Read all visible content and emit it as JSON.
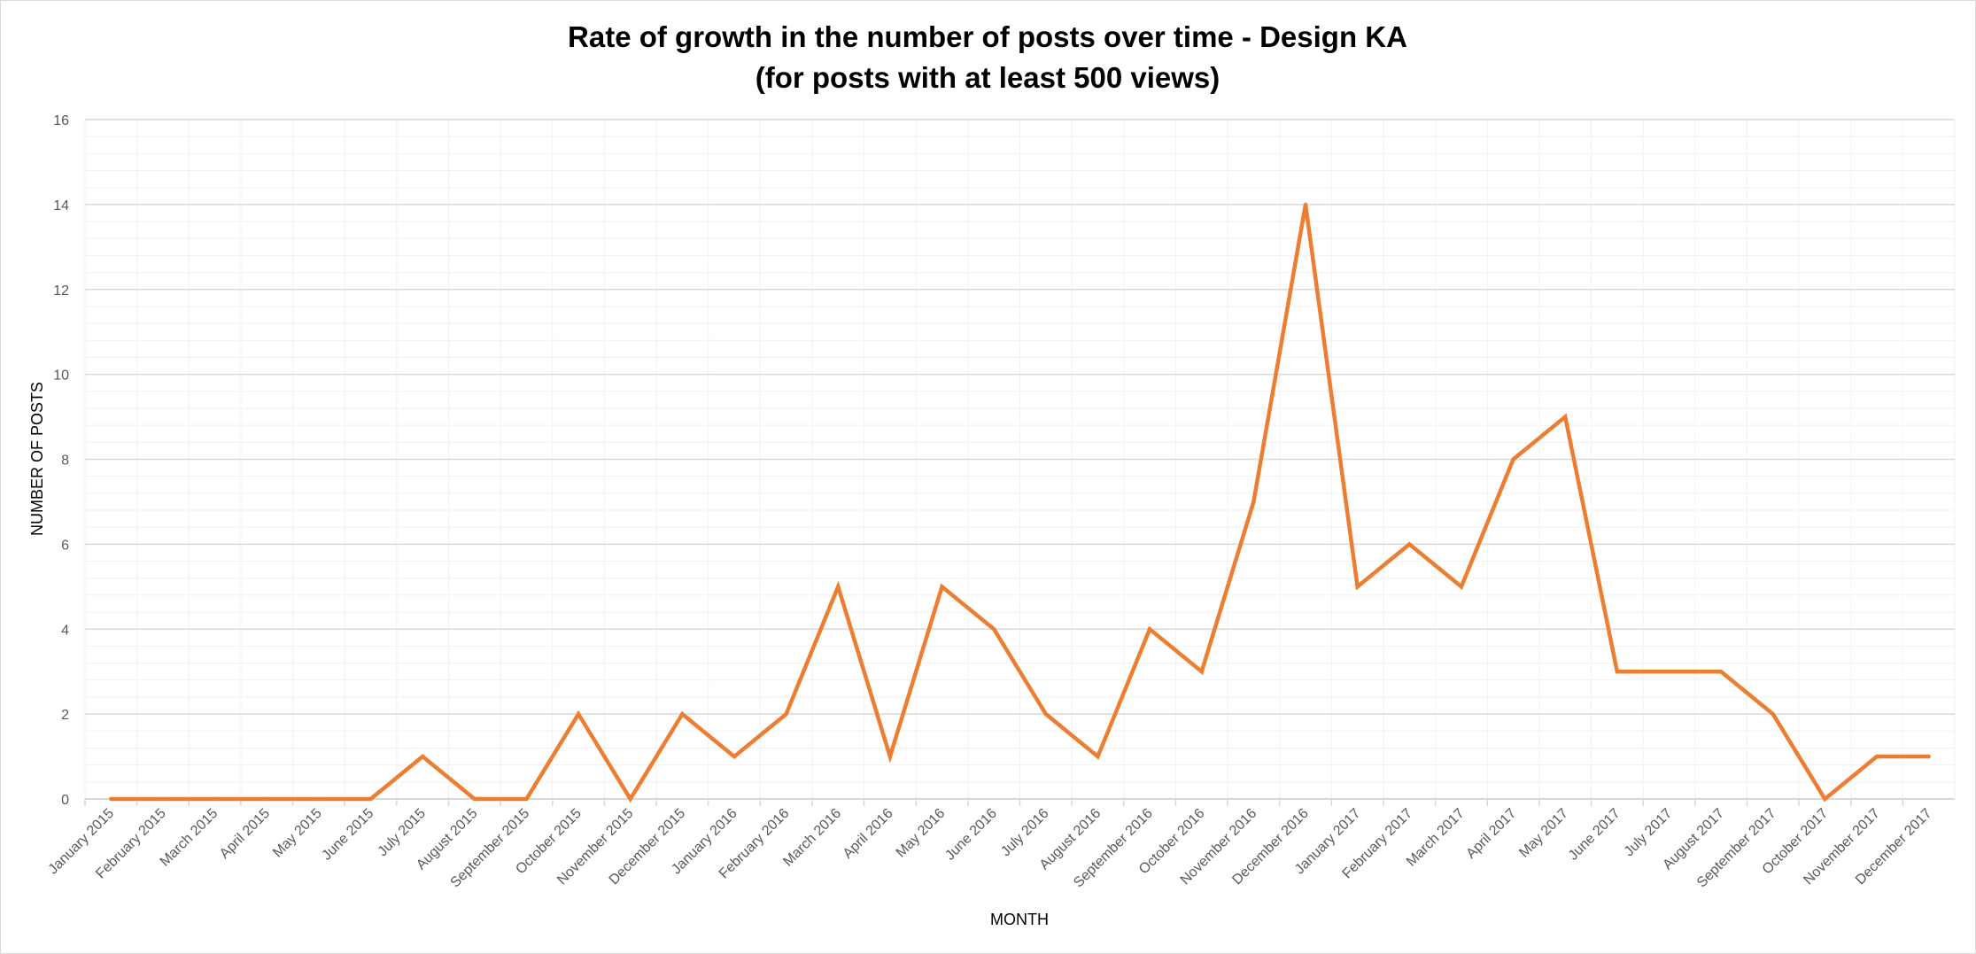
{
  "chart_data": {
    "type": "line",
    "title": "Rate of growth in the number of posts over time - Design KA",
    "subtitle": "(for posts with at least 500 views)",
    "xlabel": "MONTH",
    "ylabel": "NUMBER OF POSTS",
    "ylim": [
      0,
      16
    ],
    "y_ticks": [
      0,
      2,
      4,
      6,
      8,
      10,
      12,
      14,
      16
    ],
    "grid": true,
    "legend": "none",
    "categories": [
      "January 2015",
      "February 2015",
      "March 2015",
      "April 2015",
      "May 2015",
      "June 2015",
      "July 2015",
      "August 2015",
      "September 2015",
      "October 2015",
      "November 2015",
      "December 2015",
      "January 2016",
      "February 2016",
      "March 2016",
      "April 2016",
      "May 2016",
      "June 2016",
      "July 2016",
      "August 2016",
      "September 2016",
      "October 2016",
      "November 2016",
      "December 2016",
      "January 2017",
      "February 2017",
      "March 2017",
      "April 2017",
      "May 2017",
      "June 2017",
      "July 2017",
      "August 2017",
      "September 2017",
      "October 2017",
      "November 2017",
      "December 2017"
    ],
    "series": [
      {
        "color": "#ed7d31",
        "values": [
          0,
          0,
          0,
          0,
          0,
          0,
          1,
          0,
          0,
          2,
          0,
          2,
          1,
          2,
          5,
          1,
          5,
          4,
          2,
          1,
          4,
          3,
          7,
          14,
          5,
          6,
          5,
          8,
          9,
          3,
          3,
          3,
          2,
          0,
          1,
          1
        ]
      }
    ],
    "colors": {
      "line": "#ed7d31",
      "major_grid": "#d9d9d9",
      "minor_grid": "#f2f2f2",
      "tick_text": "#595959"
    }
  }
}
